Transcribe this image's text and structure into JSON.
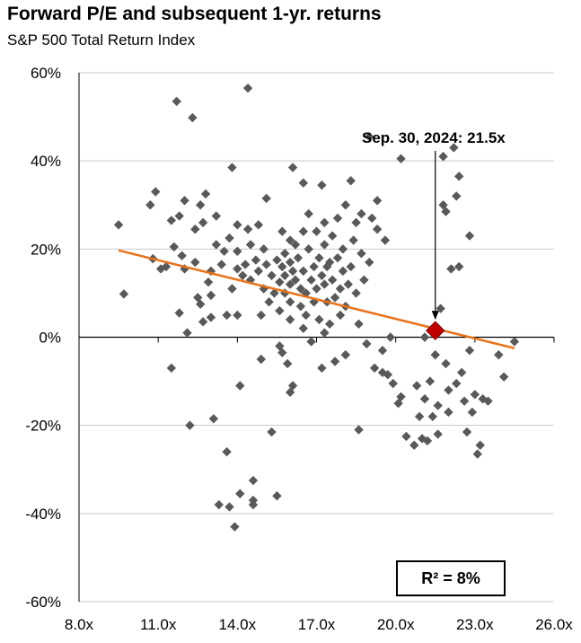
{
  "chart_data": {
    "type": "scatter",
    "title": "Forward P/E and subsequent 1-yr. returns",
    "subtitle": "S&P 500 Total Return Index",
    "xlabel": "",
    "ylabel": "",
    "xlim": [
      8,
      26
    ],
    "ylim": [
      -60,
      60
    ],
    "x_ticks": [
      8,
      11,
      14,
      17,
      20,
      23,
      26
    ],
    "x_tick_labels": [
      "8.0x",
      "11.0x",
      "14.0x",
      "17.0x",
      "20.0x",
      "23.0x",
      "26.0x"
    ],
    "y_ticks": [
      -60,
      -40,
      -20,
      0,
      20,
      40,
      60
    ],
    "y_tick_labels": [
      "-60%",
      "-40%",
      "-20%",
      "0%",
      "20%",
      "40%",
      "60%"
    ],
    "grid": "horizontal",
    "annotation": "Sep. 30, 2024:  21.5x",
    "highlight": {
      "x": 21.5,
      "y": 1.5,
      "color": "#c00000"
    },
    "trendline": {
      "x": [
        9.5,
        24.5
      ],
      "y": [
        19.7,
        -2.5
      ],
      "color": "#e8731c"
    },
    "r_squared_label": "R²  = 8%",
    "point_color": "#595959",
    "points": [
      [
        9.5,
        25.5
      ],
      [
        9.7,
        9.8
      ],
      [
        10.7,
        30
      ],
      [
        10.8,
        17.8
      ],
      [
        10.9,
        33
      ],
      [
        11.1,
        15.5
      ],
      [
        11.3,
        16
      ],
      [
        11.5,
        26.5
      ],
      [
        11.5,
        -7
      ],
      [
        11.6,
        20.5
      ],
      [
        11.7,
        53.5
      ],
      [
        11.8,
        27.5
      ],
      [
        11.8,
        5.5
      ],
      [
        11.9,
        18.5
      ],
      [
        12,
        31
      ],
      [
        12,
        15.5
      ],
      [
        12.1,
        1
      ],
      [
        12.2,
        -20
      ],
      [
        12.3,
        49.8
      ],
      [
        12.4,
        24.5
      ],
      [
        12.4,
        17
      ],
      [
        12.5,
        9
      ],
      [
        12.6,
        30
      ],
      [
        12.6,
        7.5
      ],
      [
        12.7,
        26
      ],
      [
        12.7,
        3.5
      ],
      [
        12.8,
        32.5
      ],
      [
        12.9,
        12.5
      ],
      [
        13,
        15
      ],
      [
        13,
        9.5
      ],
      [
        13,
        4.5
      ],
      [
        13.1,
        -18.5
      ],
      [
        13.2,
        27.5
      ],
      [
        13.2,
        21
      ],
      [
        13.3,
        -38
      ],
      [
        13.4,
        16.5
      ],
      [
        13.5,
        19.5
      ],
      [
        13.6,
        -26
      ],
      [
        13.6,
        5
      ],
      [
        13.7,
        22.5
      ],
      [
        13.7,
        -38.5
      ],
      [
        13.8,
        38.5
      ],
      [
        13.8,
        11
      ],
      [
        13.9,
        -43
      ],
      [
        14,
        25.5
      ],
      [
        14,
        19.5
      ],
      [
        14,
        15.5
      ],
      [
        14,
        5
      ],
      [
        14.1,
        -35.5
      ],
      [
        14.1,
        -11
      ],
      [
        14.2,
        14
      ],
      [
        14.3,
        16.5
      ],
      [
        14.4,
        56.5
      ],
      [
        14.4,
        24.5
      ],
      [
        14.5,
        21
      ],
      [
        14.5,
        13
      ],
      [
        14.6,
        -37
      ],
      [
        14.6,
        -32.5
      ],
      [
        14.6,
        -38
      ],
      [
        14.7,
        17.5
      ],
      [
        14.8,
        25.5
      ],
      [
        14.8,
        15
      ],
      [
        14.9,
        5
      ],
      [
        14.9,
        -5
      ],
      [
        15,
        20
      ],
      [
        15,
        11
      ],
      [
        15.1,
        31.5
      ],
      [
        15.1,
        16.5
      ],
      [
        15.2,
        8
      ],
      [
        15.3,
        14
      ],
      [
        15.3,
        -21.5
      ],
      [
        15.4,
        10
      ],
      [
        15.5,
        -36
      ],
      [
        15.5,
        17.5
      ],
      [
        15.6,
        12.5
      ],
      [
        15.6,
        6
      ],
      [
        15.6,
        -2
      ],
      [
        15.7,
        24
      ],
      [
        15.7,
        16
      ],
      [
        15.7,
        -3.5
      ],
      [
        15.8,
        19
      ],
      [
        15.8,
        14
      ],
      [
        15.8,
        10
      ],
      [
        15.9,
        -6
      ],
      [
        16,
        22
      ],
      [
        16,
        17
      ],
      [
        16,
        12
      ],
      [
        16,
        8
      ],
      [
        16,
        4
      ],
      [
        16,
        -12.5
      ],
      [
        16.1,
        38.5
      ],
      [
        16.1,
        15
      ],
      [
        16.1,
        -11
      ],
      [
        16.2,
        21
      ],
      [
        16.2,
        13
      ],
      [
        16.3,
        18
      ],
      [
        16.4,
        11
      ],
      [
        16.4,
        7
      ],
      [
        16.5,
        35
      ],
      [
        16.5,
        24
      ],
      [
        16.5,
        15
      ],
      [
        16.5,
        2
      ],
      [
        16.6,
        10
      ],
      [
        16.6,
        5
      ],
      [
        16.7,
        28
      ],
      [
        16.7,
        20
      ],
      [
        16.8,
        13
      ],
      [
        16.8,
        -1
      ],
      [
        16.9,
        16
      ],
      [
        16.9,
        8
      ],
      [
        17,
        24
      ],
      [
        17,
        11
      ],
      [
        17.1,
        18
      ],
      [
        17.1,
        4
      ],
      [
        17.2,
        34.5
      ],
      [
        17.2,
        14
      ],
      [
        17.2,
        -7
      ],
      [
        17.3,
        26
      ],
      [
        17.3,
        21
      ],
      [
        17.3,
        12
      ],
      [
        17.3,
        1
      ],
      [
        17.4,
        16
      ],
      [
        17.4,
        8
      ],
      [
        17.5,
        17
      ],
      [
        17.5,
        3
      ],
      [
        17.6,
        13
      ],
      [
        17.6,
        23
      ],
      [
        17.7,
        9
      ],
      [
        17.7,
        -5.5
      ],
      [
        17.8,
        27
      ],
      [
        17.8,
        18
      ],
      [
        17.9,
        11
      ],
      [
        17.9,
        5
      ],
      [
        18,
        20
      ],
      [
        18,
        15
      ],
      [
        18.1,
        30
      ],
      [
        18.1,
        -4
      ],
      [
        18.1,
        7
      ],
      [
        18.2,
        12
      ],
      [
        18.3,
        35.5
      ],
      [
        18.3,
        16
      ],
      [
        18.4,
        22
      ],
      [
        18.5,
        26
      ],
      [
        18.5,
        10
      ],
      [
        18.6,
        3
      ],
      [
        18.6,
        -21
      ],
      [
        18.7,
        28
      ],
      [
        18.7,
        19
      ],
      [
        18.8,
        13
      ],
      [
        18.9,
        -1.5
      ],
      [
        19,
        45.5
      ],
      [
        19,
        17
      ],
      [
        19.1,
        27
      ],
      [
        19.2,
        -7
      ],
      [
        19.3,
        31
      ],
      [
        19.3,
        24.5
      ],
      [
        19.5,
        -8
      ],
      [
        19.5,
        -3
      ],
      [
        19.6,
        22
      ],
      [
        19.7,
        -8.5
      ],
      [
        19.8,
        0
      ],
      [
        19.9,
        -10.5
      ],
      [
        20.1,
        -15
      ],
      [
        20.2,
        40.5
      ],
      [
        20.2,
        -13.5
      ],
      [
        20.4,
        -22.5
      ],
      [
        20.7,
        -24.5
      ],
      [
        20.8,
        -11
      ],
      [
        20.9,
        -18
      ],
      [
        21,
        -23
      ],
      [
        21.1,
        0
      ],
      [
        21.1,
        -14
      ],
      [
        21.2,
        -23.5
      ],
      [
        21.3,
        -10
      ],
      [
        21.4,
        -18
      ],
      [
        21.5,
        -4
      ],
      [
        21.6,
        -22
      ],
      [
        21.6,
        -15.5
      ],
      [
        21.7,
        6.5
      ],
      [
        21.8,
        30
      ],
      [
        21.8,
        41
      ],
      [
        21.9,
        28.5
      ],
      [
        21.9,
        -6
      ],
      [
        22,
        -12
      ],
      [
        22,
        -17
      ],
      [
        22.1,
        15.5
      ],
      [
        22.2,
        43
      ],
      [
        22.3,
        32
      ],
      [
        22.3,
        -10.5
      ],
      [
        22.4,
        36.5
      ],
      [
        22.4,
        16
      ],
      [
        22.5,
        -8
      ],
      [
        22.6,
        -14.5
      ],
      [
        22.7,
        -21.5
      ],
      [
        22.8,
        23
      ],
      [
        22.8,
        -3
      ],
      [
        22.9,
        -17
      ],
      [
        23,
        -13
      ],
      [
        23.1,
        -26.5
      ],
      [
        23.2,
        -24.5
      ],
      [
        23.3,
        -14
      ],
      [
        23.5,
        -14.5
      ],
      [
        23.9,
        -4
      ],
      [
        24.1,
        -9
      ],
      [
        24.5,
        -1
      ]
    ]
  }
}
